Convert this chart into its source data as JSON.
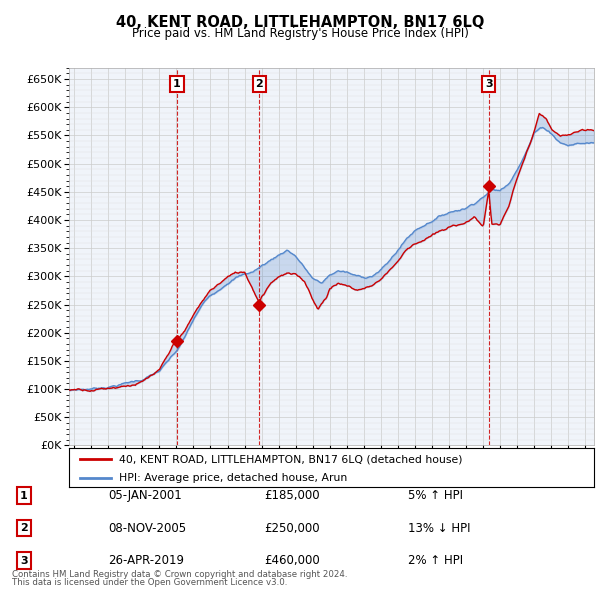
{
  "title": "40, KENT ROAD, LITTLEHAMPTON, BN17 6LQ",
  "subtitle": "Price paid vs. HM Land Registry's House Price Index (HPI)",
  "ylabel_ticks": [
    0,
    50000,
    100000,
    150000,
    200000,
    250000,
    300000,
    350000,
    400000,
    450000,
    500000,
    550000,
    600000,
    650000
  ],
  "ylim": [
    0,
    670000
  ],
  "xlim_start": 1994.7,
  "xlim_end": 2025.5,
  "sale_color": "#cc0000",
  "hpi_color": "#5588cc",
  "hpi_fill_color": "#ddeeff",
  "sale_label": "40, KENT ROAD, LITTLEHAMPTON, BN17 6LQ (detached house)",
  "hpi_label": "HPI: Average price, detached house, Arun",
  "transactions": [
    {
      "num": 1,
      "date": "05-JAN-2001",
      "price": 185000,
      "year": 2001.03,
      "pct": "5%",
      "dir": "↑"
    },
    {
      "num": 2,
      "date": "08-NOV-2005",
      "price": 250000,
      "year": 2005.86,
      "pct": "13%",
      "dir": "↓"
    },
    {
      "num": 3,
      "date": "26-APR-2019",
      "price": 460000,
      "year": 2019.32,
      "pct": "2%",
      "dir": "↑"
    }
  ],
  "footer1": "Contains HM Land Registry data © Crown copyright and database right 2024.",
  "footer2": "This data is licensed under the Open Government Licence v3.0.",
  "background_color": "#ffffff",
  "grid_color": "#cccccc",
  "chart_bg": "#f0f4fa"
}
